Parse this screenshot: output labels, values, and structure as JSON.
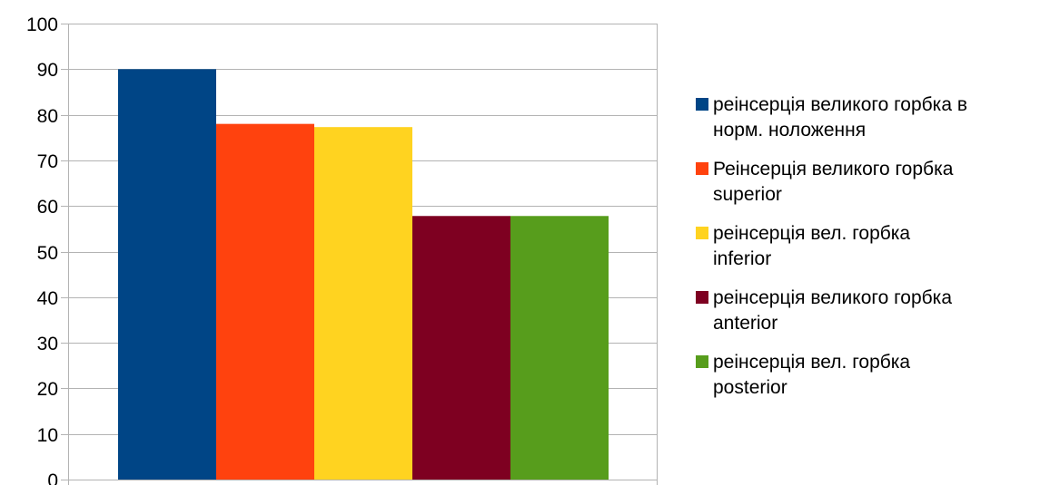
{
  "chart_data": {
    "type": "bar",
    "categories": [
      ""
    ],
    "ylim": [
      0,
      100
    ],
    "yticks": [
      0,
      10,
      20,
      30,
      40,
      50,
      60,
      70,
      80,
      90,
      100
    ],
    "grid": true,
    "legend_position": "right",
    "series": [
      {
        "name": "реінсерція великого горбка в норм. ноложення",
        "legend_lines": [
          "реінсерція великого горбка в",
          "норм. ноложення"
        ],
        "values": [
          90
        ],
        "color": "#004586"
      },
      {
        "name": "Реінсерція великого горбка superior",
        "legend_lines": [
          "Реінсерція великого горбка",
          "superior"
        ],
        "values": [
          78
        ],
        "color": "#ff420e"
      },
      {
        "name": "реінсерція вел. горбка inferior",
        "legend_lines": [
          "реінсерція вел. горбка",
          "inferior"
        ],
        "values": [
          77.3
        ],
        "color": "#ffd320"
      },
      {
        "name": "реінсерція великого горбка anterior",
        "legend_lines": [
          "реінсерція великого горбка",
          "anterior"
        ],
        "values": [
          57.8
        ],
        "color": "#7e0021"
      },
      {
        "name": "реінсерція вел. горбка posterior",
        "legend_lines": [
          "реінсерція вел. горбка",
          "posterior"
        ],
        "values": [
          57.8
        ],
        "color": "#579d1c"
      }
    ]
  }
}
